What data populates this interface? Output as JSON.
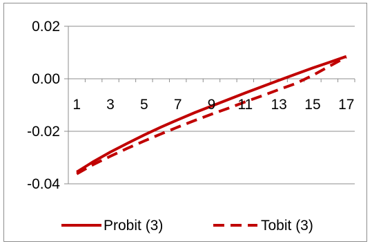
{
  "chart_data": {
    "type": "line",
    "title": "",
    "xlabel": "",
    "ylabel": "",
    "x": [
      1,
      2,
      3,
      4,
      5,
      6,
      7,
      8,
      9,
      10,
      11,
      12,
      13,
      14,
      15,
      16,
      17
    ],
    "x_tick_labels": [
      "1",
      "3",
      "5",
      "7",
      "9",
      "11",
      "13",
      "15",
      "17"
    ],
    "y_tick_labels": [
      "0.02",
      "0.00",
      "-0.02",
      "-0.04"
    ],
    "y_ticks": [
      0.02,
      0.0,
      -0.02,
      -0.04
    ],
    "ylim": [
      -0.04,
      0.02
    ],
    "grid": "horizontal",
    "legend_position": "bottom",
    "series": [
      {
        "name": "Probit (3)",
        "style": "solid",
        "color": "#c00000",
        "values": [
          -0.0355,
          -0.0315,
          -0.0279,
          -0.0246,
          -0.0214,
          -0.0184,
          -0.0156,
          -0.0129,
          -0.0104,
          -0.0079,
          -0.0054,
          -0.003,
          -0.0006,
          0.0018,
          0.0041,
          0.0063,
          0.0085
        ]
      },
      {
        "name": "Tobit (3)",
        "style": "dashed",
        "color": "#c00000",
        "values": [
          -0.0362,
          -0.0326,
          -0.0295,
          -0.0265,
          -0.0237,
          -0.021,
          -0.0184,
          -0.0159,
          -0.0135,
          -0.0112,
          -0.0088,
          -0.0065,
          -0.0041,
          -0.0018,
          0.0013,
          0.0048,
          0.0083
        ]
      }
    ]
  }
}
